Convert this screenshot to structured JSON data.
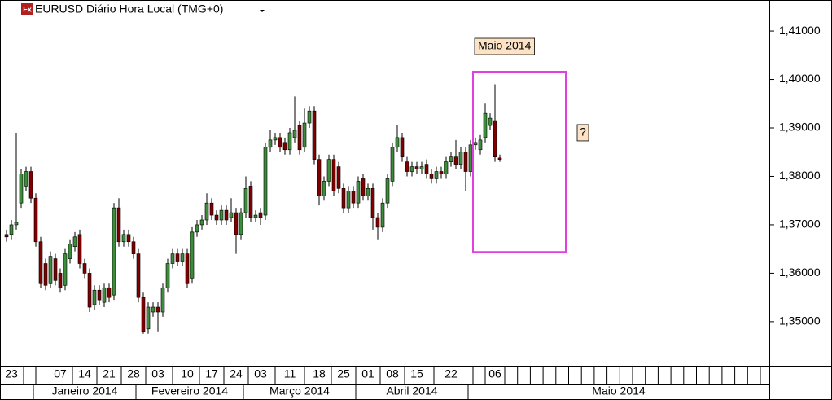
{
  "chart_data": {
    "type": "candlestick",
    "title": "EURUSD Diário Hora Local (TMG+0)",
    "icon_label": "Fx",
    "up_color": "#3c8c3c",
    "down_color": "#800000",
    "ylim": [
      1.3409,
      1.4164
    ],
    "yticks": [
      {
        "value": 1.35,
        "label": "1,35000"
      },
      {
        "value": 1.36,
        "label": "1,36000"
      },
      {
        "value": 1.37,
        "label": "1,37000"
      },
      {
        "value": 1.38,
        "label": "1,38000"
      },
      {
        "value": 1.39,
        "label": "1,39000"
      },
      {
        "value": 1.4,
        "label": "1,40000"
      },
      {
        "value": 1.41,
        "label": "1,41000"
      }
    ],
    "categories": [
      null,
      "23",
      null,
      null,
      null,
      null,
      null,
      null,
      null,
      null,
      null,
      "07",
      null,
      null,
      null,
      null,
      "14",
      null,
      null,
      null,
      null,
      "21",
      null,
      null,
      null,
      null,
      "28",
      null,
      null,
      null,
      null,
      "03",
      null,
      null,
      null,
      null,
      null,
      "10",
      null,
      null,
      null,
      null,
      "17",
      null,
      null,
      null,
      null,
      "24",
      null,
      null,
      null,
      null,
      "03",
      null,
      null,
      null,
      null,
      null,
      "11",
      null,
      null,
      null,
      null,
      null,
      "18",
      null,
      null,
      null,
      null,
      "25",
      null,
      null,
      null,
      null,
      "01",
      null,
      null,
      null,
      null,
      "08",
      null,
      null,
      null,
      null,
      "15",
      null,
      null,
      null,
      null,
      null,
      null,
      "22",
      null,
      null,
      null,
      null,
      null,
      null,
      null,
      null,
      "06",
      null,
      null,
      null,
      null,
      null,
      null,
      null,
      null,
      null,
      null,
      null,
      null,
      null,
      null,
      null,
      null,
      null,
      null,
      null,
      null,
      null,
      null,
      null,
      null,
      null,
      null,
      null,
      null,
      null,
      null,
      null,
      null,
      null,
      null,
      null,
      null,
      null,
      null,
      null,
      null,
      null,
      null,
      null,
      null,
      null,
      null,
      null,
      null,
      null,
      null,
      null,
      null,
      null,
      null,
      null,
      null
    ],
    "month_categories": [
      null,
      null,
      null,
      null,
      null,
      null,
      "Janeiro 2014",
      null,
      null,
      null,
      null,
      null,
      null,
      null,
      null,
      null,
      null,
      null,
      null,
      null,
      null,
      null,
      null,
      null,
      null,
      null,
      null,
      "Fevereiro 2014",
      null,
      null,
      null,
      null,
      null,
      null,
      null,
      null,
      null,
      null,
      null,
      null,
      null,
      null,
      null,
      null,
      null,
      null,
      null,
      null,
      null,
      "Março 2014",
      null,
      null,
      null,
      null,
      null,
      null,
      null,
      null,
      null,
      null,
      null,
      null,
      null,
      null,
      null,
      null,
      null,
      null,
      null,
      null,
      null,
      null,
      "Abril 2014",
      null,
      null,
      null,
      null,
      null,
      null,
      null,
      null,
      null,
      null,
      null,
      null,
      null,
      null,
      null,
      null,
      null,
      null,
      null,
      null,
      null,
      null,
      "Maio 2014",
      null,
      null,
      null,
      null,
      null,
      null,
      null,
      null,
      null,
      null,
      null,
      null,
      null,
      null,
      null,
      null,
      null,
      null,
      null,
      null,
      null,
      null,
      null,
      null,
      null,
      null,
      null,
      null,
      null,
      null,
      null,
      null,
      null,
      null,
      null,
      null,
      null,
      null,
      null,
      null,
      null,
      null,
      null,
      null,
      null,
      null,
      null,
      null,
      null,
      null,
      null,
      null,
      null,
      null,
      null,
      null,
      null,
      null,
      null,
      null,
      null
    ],
    "open": [
      1.368,
      1.368,
      1.37,
      1.3745,
      1.378,
      1.381,
      1.3755,
      1.3665,
      1.362,
      1.358,
      1.363,
      1.36,
      1.3575,
      1.363,
      1.3655,
      1.368,
      1.362,
      1.36,
      1.3535,
      1.3565,
      1.354,
      1.357,
      1.3555,
      1.3735,
      1.3665,
      1.368,
      1.3665,
      1.364,
      1.355,
      1.3485,
      1.352,
      1.353,
      1.352,
      1.357,
      1.362,
      1.364,
      1.3625,
      1.364,
      1.359,
      1.3685,
      1.37,
      1.371,
      1.3745,
      1.372,
      1.371,
      1.373,
      1.3715,
      1.3725,
      1.368,
      1.3725,
      1.378,
      1.3715,
      1.3725,
      1.372,
      1.386,
      1.3875,
      1.388,
      1.387,
      1.3855,
      1.388,
      1.3905,
      1.386,
      1.391,
      1.3935,
      1.3835,
      1.376,
      1.379,
      1.3835,
      1.382,
      1.3775,
      1.3735,
      1.377,
      1.3745,
      1.3795,
      1.376,
      1.3775,
      1.3715,
      1.3695,
      1.3745,
      1.379,
      1.386,
      1.388,
      1.383,
      1.381,
      1.382,
      1.3815,
      1.3825,
      1.3805,
      1.3795,
      1.381,
      1.3805,
      1.383,
      1.384,
      1.3825,
      1.385,
      1.381,
      1.3865,
      1.3855,
      1.388,
      1.3905,
      1.3915,
      1.3838,
      null,
      null,
      null,
      null,
      null,
      null,
      null,
      null,
      null,
      null,
      null,
      null,
      null,
      null,
      null,
      null,
      null,
      null,
      null,
      null,
      null,
      null,
      null,
      null,
      null,
      null,
      null,
      null,
      null,
      null,
      null,
      null,
      null,
      null,
      null,
      null,
      null,
      null,
      null,
      null,
      null,
      null,
      null,
      null,
      null,
      null,
      null,
      null,
      null,
      null,
      null,
      null,
      null,
      null,
      null
    ],
    "high": [
      1.369,
      1.371,
      1.389,
      1.3815,
      1.382,
      1.382,
      1.3765,
      1.3675,
      1.363,
      1.3645,
      1.364,
      1.361,
      1.365,
      1.367,
      1.3685,
      1.369,
      1.363,
      1.361,
      1.3575,
      1.3575,
      1.358,
      1.358,
      1.3745,
      1.3755,
      1.369,
      1.369,
      1.3675,
      1.365,
      1.356,
      1.354,
      1.354,
      1.354,
      1.358,
      1.363,
      1.365,
      1.365,
      1.365,
      1.365,
      1.3695,
      1.371,
      1.372,
      1.3765,
      1.3755,
      1.373,
      1.374,
      1.374,
      1.3755,
      1.3735,
      1.3735,
      1.38,
      1.379,
      1.373,
      1.3735,
      1.387,
      1.3895,
      1.389,
      1.389,
      1.388,
      1.39,
      1.3965,
      1.3915,
      1.394,
      1.3945,
      1.3945,
      1.3845,
      1.38,
      1.3845,
      1.3845,
      1.383,
      1.3785,
      1.378,
      1.378,
      1.38,
      1.3805,
      1.3785,
      1.3785,
      1.3725,
      1.3755,
      1.3805,
      1.387,
      1.3905,
      1.389,
      1.384,
      1.383,
      1.383,
      1.383,
      1.3835,
      1.3815,
      1.382,
      1.382,
      1.384,
      1.385,
      1.3875,
      1.386,
      1.386,
      1.3875,
      1.388,
      1.3885,
      1.395,
      1.393,
      1.399,
      1.3845,
      null,
      null,
      null,
      null,
      null,
      null,
      null,
      null,
      null,
      null,
      null,
      null,
      null,
      null,
      null,
      null,
      null,
      null,
      null,
      null,
      null,
      null,
      null,
      null,
      null,
      null,
      null,
      null,
      null,
      null,
      null,
      null,
      null,
      null,
      null,
      null,
      null,
      null,
      null,
      null,
      null,
      null,
      null,
      null,
      null,
      null,
      null,
      null,
      null,
      null,
      null,
      null,
      null,
      null,
      null
    ],
    "low": [
      1.3665,
      1.367,
      1.369,
      1.3735,
      1.377,
      1.3745,
      1.3655,
      1.357,
      1.3565,
      1.357,
      1.3575,
      1.356,
      1.3565,
      1.362,
      1.3645,
      1.361,
      1.359,
      1.352,
      1.3525,
      1.3535,
      1.353,
      1.354,
      1.3545,
      1.3655,
      1.3655,
      1.3655,
      1.363,
      1.354,
      1.3475,
      1.3475,
      1.351,
      1.348,
      1.351,
      1.356,
      1.361,
      1.3615,
      1.3615,
      1.357,
      1.358,
      1.3675,
      1.369,
      1.37,
      1.371,
      1.37,
      1.37,
      1.37,
      1.3705,
      1.364,
      1.367,
      1.3715,
      1.3705,
      1.3705,
      1.37,
      1.371,
      1.385,
      1.3865,
      1.385,
      1.3845,
      1.3845,
      1.387,
      1.3845,
      1.385,
      1.39,
      1.3825,
      1.374,
      1.375,
      1.378,
      1.376,
      1.3765,
      1.3725,
      1.3725,
      1.3735,
      1.3735,
      1.375,
      1.375,
      1.369,
      1.367,
      1.3685,
      1.3735,
      1.378,
      1.385,
      1.383,
      1.38,
      1.38,
      1.3805,
      1.3805,
      1.3795,
      1.3785,
      1.3785,
      1.3795,
      1.3795,
      1.382,
      1.3815,
      1.3815,
      1.377,
      1.38,
      1.3855,
      1.3845,
      1.387,
      1.3895,
      1.383,
      1.383,
      null,
      null,
      null,
      null,
      null,
      null,
      null,
      null,
      null,
      null,
      null,
      null,
      null,
      null,
      null,
      null,
      null,
      null,
      null,
      null,
      null,
      null,
      null,
      null,
      null,
      null,
      null,
      null,
      null,
      null,
      null,
      null,
      null,
      null,
      null,
      null,
      null,
      null,
      null,
      null,
      null,
      null,
      null,
      null,
      null,
      null,
      null,
      null,
      null,
      null,
      null,
      null,
      null,
      null,
      null
    ],
    "close": [
      1.3675,
      1.37,
      1.3705,
      1.3805,
      1.381,
      1.3755,
      1.3665,
      1.358,
      1.3575,
      1.3635,
      1.3585,
      1.357,
      1.364,
      1.366,
      1.3675,
      1.362,
      1.36,
      1.353,
      1.3565,
      1.3545,
      1.357,
      1.355,
      1.3735,
      1.3665,
      1.368,
      1.3665,
      1.364,
      1.355,
      1.348,
      1.353,
      1.353,
      1.352,
      1.357,
      1.362,
      1.364,
      1.3625,
      1.364,
      1.358,
      1.3685,
      1.37,
      1.371,
      1.3745,
      1.372,
      1.371,
      1.373,
      1.371,
      1.3725,
      1.368,
      1.3725,
      1.3775,
      1.3715,
      1.372,
      1.3715,
      1.386,
      1.3875,
      1.388,
      1.386,
      1.3855,
      1.389,
      1.3895,
      1.3855,
      1.391,
      1.3935,
      1.3835,
      1.376,
      1.379,
      1.3835,
      1.377,
      1.3775,
      1.3735,
      1.377,
      1.3745,
      1.379,
      1.376,
      1.3775,
      1.3715,
      1.3695,
      1.3745,
      1.3795,
      1.386,
      1.388,
      1.384,
      1.381,
      1.382,
      1.3815,
      1.382,
      1.3805,
      1.3795,
      1.381,
      1.3805,
      1.383,
      1.384,
      1.3825,
      1.385,
      1.381,
      1.3865,
      1.387,
      1.3875,
      1.393,
      1.392,
      1.384,
      1.3835,
      null,
      null,
      null,
      null,
      null,
      null,
      null,
      null,
      null,
      null,
      null,
      null,
      null,
      null,
      null,
      null,
      null,
      null,
      null,
      null,
      null,
      null,
      null,
      null,
      null,
      null,
      null,
      null,
      null,
      null,
      null,
      null,
      null,
      null,
      null,
      null,
      null,
      null,
      null,
      null,
      null,
      null,
      null,
      null,
      null,
      null,
      null,
      null,
      null,
      null,
      null,
      null,
      null,
      null,
      null
    ],
    "box": {
      "top": 1.4016,
      "bottom": 1.3644,
      "from": 96,
      "to": 115,
      "color": "#e040e0",
      "label": "Maio 2014"
    },
    "note": {
      "text": "?",
      "x": 118,
      "y": 1.389
    }
  }
}
